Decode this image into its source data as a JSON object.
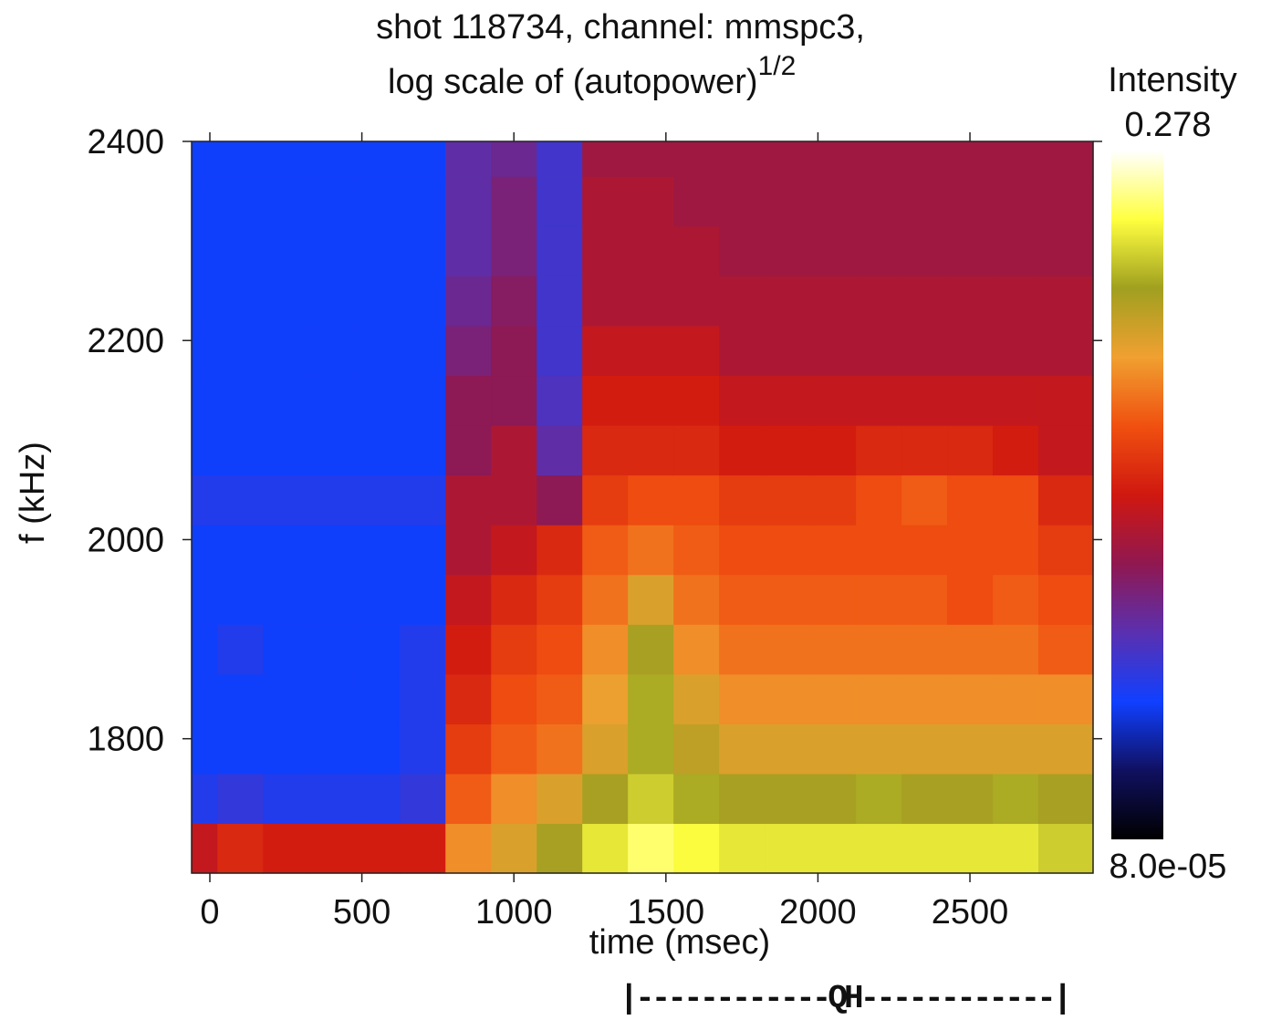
{
  "chart_data": {
    "type": "heatmap",
    "title": [
      "shot 118734, channel: mmspc3,",
      "log scale of (autopower)"
    ],
    "title_superscript": "1/2",
    "xlabel": "time (msec)",
    "ylabel": "f (kHz)",
    "annotation": "|------------QH------------|",
    "x": [
      -50,
      100,
      250,
      400,
      550,
      700,
      850,
      1000,
      1150,
      1300,
      1450,
      1600,
      1750,
      1900,
      2050,
      2200,
      2350,
      2500,
      2650,
      2800
    ],
    "y": [
      1690,
      1740,
      1790,
      1840,
      1890,
      1940,
      1990,
      2040,
      2090,
      2140,
      2190,
      2240,
      2290,
      2340,
      2390
    ],
    "z": [
      [
        0.004,
        0.006,
        0.005,
        0.005,
        0.005,
        0.005,
        0.02,
        0.03,
        0.05,
        0.1,
        0.15,
        0.12,
        0.1,
        0.1,
        0.1,
        0.1,
        0.1,
        0.1,
        0.1,
        0.08
      ],
      [
        0.0005,
        0.0006,
        0.0005,
        0.0005,
        0.0005,
        0.0006,
        0.012,
        0.02,
        0.03,
        0.05,
        0.08,
        0.06,
        0.05,
        0.05,
        0.05,
        0.06,
        0.05,
        0.05,
        0.06,
        0.05
      ],
      [
        0.0004,
        0.0004,
        0.0004,
        0.0004,
        0.0004,
        0.0005,
        0.008,
        0.012,
        0.015,
        0.03,
        0.06,
        0.04,
        0.03,
        0.03,
        0.03,
        0.03,
        0.03,
        0.03,
        0.03,
        0.03
      ],
      [
        0.0004,
        0.0004,
        0.0004,
        0.0004,
        0.0004,
        0.0005,
        0.006,
        0.01,
        0.012,
        0.025,
        0.06,
        0.03,
        0.02,
        0.02,
        0.02,
        0.02,
        0.02,
        0.02,
        0.02,
        0.02
      ],
      [
        0.0004,
        0.0005,
        0.0004,
        0.0004,
        0.0004,
        0.0005,
        0.005,
        0.008,
        0.01,
        0.02,
        0.05,
        0.02,
        0.015,
        0.015,
        0.015,
        0.015,
        0.015,
        0.015,
        0.015,
        0.012
      ],
      [
        0.0004,
        0.0004,
        0.0004,
        0.0004,
        0.0004,
        0.0004,
        0.004,
        0.006,
        0.008,
        0.015,
        0.03,
        0.015,
        0.012,
        0.012,
        0.012,
        0.012,
        0.012,
        0.01,
        0.012,
        0.01
      ],
      [
        0.0004,
        0.0004,
        0.0004,
        0.0004,
        0.0004,
        0.0004,
        0.003,
        0.004,
        0.006,
        0.012,
        0.015,
        0.012,
        0.01,
        0.01,
        0.01,
        0.01,
        0.01,
        0.01,
        0.01,
        0.008
      ],
      [
        0.0005,
        0.0005,
        0.0005,
        0.0005,
        0.0005,
        0.0005,
        0.003,
        0.003,
        0.002,
        0.008,
        0.01,
        0.01,
        0.008,
        0.008,
        0.008,
        0.01,
        0.012,
        0.01,
        0.01,
        0.006
      ],
      [
        0.0004,
        0.0004,
        0.0004,
        0.0004,
        0.0004,
        0.0004,
        0.002,
        0.003,
        0.001,
        0.006,
        0.006,
        0.006,
        0.005,
        0.005,
        0.005,
        0.006,
        0.006,
        0.006,
        0.005,
        0.004
      ],
      [
        0.0004,
        0.0004,
        0.0004,
        0.0004,
        0.0004,
        0.0004,
        0.002,
        0.002,
        0.0008,
        0.005,
        0.005,
        0.005,
        0.004,
        0.004,
        0.004,
        0.004,
        0.004,
        0.004,
        0.004,
        0.004
      ],
      [
        0.0004,
        0.0004,
        0.0004,
        0.0004,
        0.0004,
        0.0004,
        0.0015,
        0.002,
        0.0007,
        0.004,
        0.004,
        0.004,
        0.003,
        0.003,
        0.003,
        0.003,
        0.003,
        0.003,
        0.003,
        0.003
      ],
      [
        0.0004,
        0.0004,
        0.0004,
        0.0004,
        0.0004,
        0.0004,
        0.0012,
        0.0018,
        0.0007,
        0.003,
        0.003,
        0.003,
        0.003,
        0.003,
        0.003,
        0.003,
        0.003,
        0.003,
        0.003,
        0.003
      ],
      [
        0.0004,
        0.0004,
        0.0004,
        0.0004,
        0.0004,
        0.0004,
        0.001,
        0.0015,
        0.0007,
        0.003,
        0.003,
        0.003,
        0.0025,
        0.0025,
        0.0025,
        0.0025,
        0.0025,
        0.0025,
        0.0025,
        0.0025
      ],
      [
        0.0004,
        0.0004,
        0.0004,
        0.0004,
        0.0004,
        0.0004,
        0.001,
        0.0015,
        0.0007,
        0.003,
        0.003,
        0.0025,
        0.0025,
        0.0025,
        0.0025,
        0.0025,
        0.0025,
        0.0025,
        0.0025,
        0.0025
      ],
      [
        0.0004,
        0.0004,
        0.0004,
        0.0004,
        0.0004,
        0.0004,
        0.001,
        0.0012,
        0.0007,
        0.0025,
        0.0025,
        0.0025,
        0.0025,
        0.0025,
        0.0025,
        0.0025,
        0.0025,
        0.0025,
        0.0025,
        0.0025
      ]
    ],
    "xlim": [
      -60,
      2905
    ],
    "ylim": [
      1665,
      2400
    ],
    "xticks": [
      0,
      500,
      1000,
      1500,
      2000,
      2500
    ],
    "yticks": [
      1800,
      2000,
      2200,
      2400
    ],
    "colorbar_title": "Intensity",
    "zlim": [
      8e-05,
      0.278
    ],
    "zticks": [
      {
        "value": 8e-05,
        "label": "8.0e-05"
      },
      0.278
    ],
    "zscale": "log",
    "colorscale": [
      "#000000",
      "#101060",
      "#1040ff",
      "#5a30b0",
      "#901850",
      "#d01810",
      "#f05010",
      "#f0a030",
      "#a0a020",
      "#ffff40",
      "#ffffff"
    ]
  }
}
